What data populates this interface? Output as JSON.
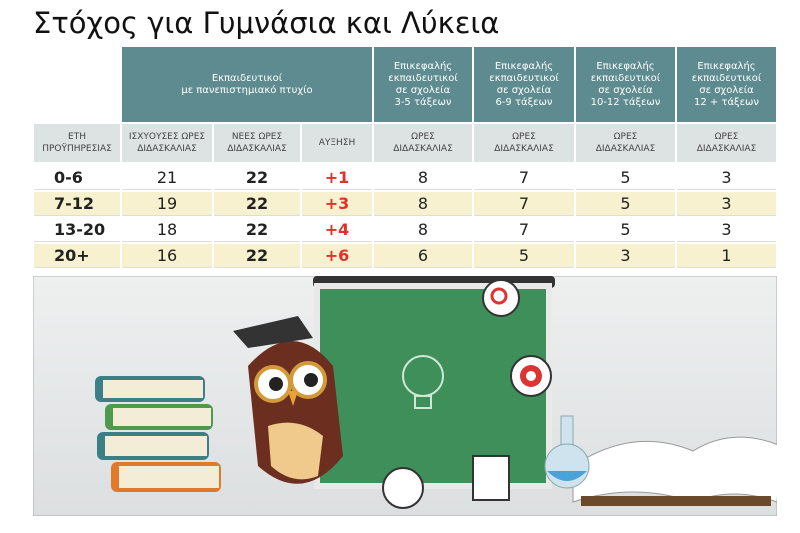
{
  "title": "Στόχος για Γυμνάσια και Λύκεια",
  "table": {
    "group_header": "Εκπαιδευτικοί\nμε πανεπιστημιακό πτυχίο",
    "school_headers": [
      "Επικεφαλής\nεκπαιδευτικοί\nσε σχολεία\n3-5 τάξεων",
      "Επικεφαλής\nεκπαιδευτικοί\nσε σχολεία\n6-9 τάξεων",
      "Επικεφαλής\nεκπαιδευτικοί\nσε σχολεία\n10-12 τάξεων",
      "Επικεφαλής\nεκπαιδευτικοί\nσε σχολεία\n12 + τάξεων"
    ],
    "sub_headers": [
      "ΕΤΗ\nΠΡΟΫΠΗΡΕΣΙΑΣ",
      "ΙΣΧΥΟΥΣΕΣ ΩΡΕΣ\nΔΙΔΑΣΚΑΛΙΑΣ",
      "ΝΕΕΣ ΩΡΕΣ\nΔΙΔΑΣΚΑΛΙΑΣ",
      "ΑΥΞΗΣΗ",
      "ΩΡΕΣ\nΔΙΔΑΣΚΑΛΙΑΣ",
      "ΩΡΕΣ\nΔΙΔΑΣΚΑΛΙΑΣ",
      "ΩΡΕΣ\nΔΙΔΑΣΚΑΛΙΑΣ",
      "ΩΡΕΣ\nΔΙΔΑΣΚΑΛΙΑΣ"
    ],
    "rows": [
      [
        "0-6",
        "21",
        "22",
        "+1",
        "8",
        "7",
        "5",
        "3"
      ],
      [
        "7-12",
        "19",
        "22",
        "+3",
        "8",
        "7",
        "5",
        "3"
      ],
      [
        "13-20",
        "18",
        "22",
        "+4",
        "8",
        "7",
        "5",
        "3"
      ],
      [
        "20+",
        "16",
        "22",
        "+6",
        "6",
        "5",
        "3",
        "1"
      ]
    ]
  }
}
